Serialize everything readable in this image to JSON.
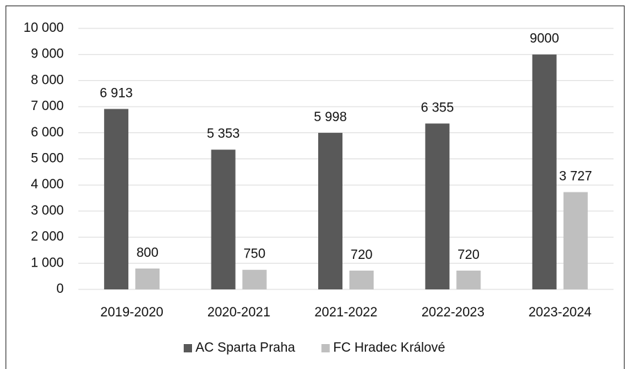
{
  "chart_data": {
    "type": "bar",
    "categories": [
      "2019-2020",
      "2020-2021",
      "2021-2022",
      "2022-2023",
      "2023-2024"
    ],
    "series": [
      {
        "name": "AC Sparta Praha",
        "color": "#595959",
        "values": [
          6913,
          5353,
          5998,
          6355,
          9000
        ],
        "value_labels": [
          "6 913",
          "5 353",
          "5 998",
          "6 355",
          "9000"
        ]
      },
      {
        "name": "FC Hradec Králové",
        "color": "#bfbfbf",
        "values": [
          800,
          750,
          720,
          720,
          3727
        ],
        "value_labels": [
          "800",
          "750",
          "720",
          "720",
          "3 727"
        ]
      }
    ],
    "ylim": [
      0,
      10000
    ],
    "yticks": [
      0,
      {
        "value": 1000,
        "label": "1 000"
      },
      {
        "value": 2000,
        "label": "2 000"
      },
      {
        "value": 3000,
        "label": "3 000"
      },
      {
        "value": 4000,
        "label": "4 000"
      },
      {
        "value": 5000,
        "label": "5 000"
      },
      {
        "value": 6000,
        "label": "6 000"
      },
      {
        "value": 7000,
        "label": "7 000"
      },
      {
        "value": 8000,
        "label": "8 000"
      },
      {
        "value": 9000,
        "label": "9 000"
      },
      {
        "value": 10000,
        "label": "10 000"
      }
    ],
    "grid": true,
    "legend": "bottom"
  }
}
